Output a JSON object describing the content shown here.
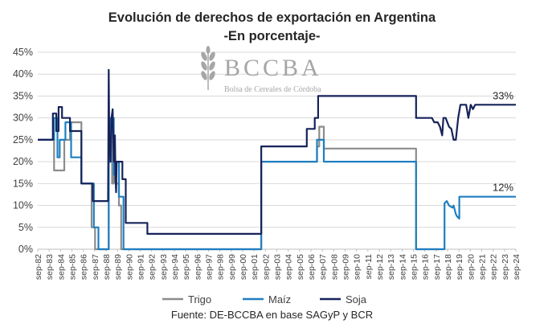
{
  "chart_data": {
    "type": "line",
    "title": "Evolución de derechos de exportación en Argentina",
    "subtitle": "-En porcentaje-",
    "xlabel": "",
    "ylabel": "",
    "ylim": [
      0,
      45
    ],
    "yticks": [
      "0%",
      "5%",
      "10%",
      "15%",
      "20%",
      "25%",
      "30%",
      "35%",
      "40%",
      "45%"
    ],
    "xlim": [
      1982.67,
      2024.67
    ],
    "xticks": [
      "sep-82",
      "sep-83",
      "sep-84",
      "sep-85",
      "sep-86",
      "sep-87",
      "sep-88",
      "sep-89",
      "sep-90",
      "sep-91",
      "sep-92",
      "sep-93",
      "sep-94",
      "sep-95",
      "sep-96",
      "sep-97",
      "sep-98",
      "sep-99",
      "sep-00",
      "sep-01",
      "sep-02",
      "sep-03",
      "sep-04",
      "sep-05",
      "sep-06",
      "sep-07",
      "sep-08",
      "sep-09",
      "sep-10",
      "sep-11",
      "sep-12",
      "sep-13",
      "sep-14",
      "sep-15",
      "sep-16",
      "sep-17",
      "sep-18",
      "sep-19",
      "sep-20",
      "sep-21",
      "sep-22",
      "sep-23",
      "sep-24"
    ],
    "grid": "horizontal",
    "legend_position": "bottom",
    "annotations": [
      {
        "text": "33%",
        "series": "Soja"
      },
      {
        "text": "12%",
        "series": "Maíz"
      }
    ],
    "source": "Fuente: DE-BCCBA en base SAGyP y BCR",
    "series": [
      {
        "name": "Trigo",
        "color": "#8c8c8c",
        "x": [
          1982.67,
          1984.1,
          1984.1,
          1985.0,
          1985.0,
          1985.5,
          1985.5,
          1986.5,
          1986.5,
          1987.4,
          1987.4,
          1987.7,
          1987.7,
          1988.9,
          1988.9,
          1989.0,
          1989.0,
          1989.2,
          1989.2,
          1989.35,
          1989.35,
          1989.5,
          1989.5,
          1989.8,
          1989.8,
          1990.0,
          1990.0,
          2002.3,
          2002.3,
          2007.2,
          2007.2,
          2007.4,
          2007.4,
          2007.8,
          2007.8,
          2015.9,
          2015.9,
          2017.95
        ],
        "y": [
          25,
          25,
          18,
          18,
          25,
          25,
          29,
          29,
          15,
          15,
          5,
          5,
          0,
          0,
          20,
          20,
          30,
          30,
          15,
          15,
          20,
          20,
          15,
          15,
          10,
          10,
          0,
          0,
          20,
          20,
          23.5,
          23.5,
          28,
          28,
          23,
          23,
          0,
          0
        ]
      },
      {
        "name": "Maíz",
        "color": "#1f7fc0",
        "x": [
          1982.67,
          1984.1,
          1984.1,
          1984.4,
          1984.4,
          1984.6,
          1984.6,
          1985.1,
          1985.1,
          1985.6,
          1985.6,
          1986.5,
          1986.5,
          1987.6,
          1987.6,
          1988.0,
          1988.0,
          1988.9,
          1988.9,
          1989.1,
          1989.1,
          1989.35,
          1989.35,
          1989.5,
          1989.5,
          1989.8,
          1989.8,
          1990.2,
          1990.2,
          2002.3,
          2002.3,
          2007.2,
          2007.2,
          2007.4,
          2007.4,
          2007.8,
          2007.8,
          2015.9,
          2015.9,
          2018.4,
          2018.4,
          2018.6,
          2018.8,
          2019.1,
          2019.2,
          2019.4,
          2019.5,
          2019.7,
          2019.7,
          2020.1,
          2020.1,
          2024.67
        ],
        "y": [
          25,
          25,
          30,
          30,
          21,
          21,
          25,
          25,
          29,
          29,
          21,
          21,
          15,
          15,
          5,
          5,
          0,
          0,
          20,
          20,
          30,
          30,
          17,
          17,
          20,
          20,
          12,
          12,
          0,
          0,
          20,
          20,
          25,
          25,
          25,
          25,
          20,
          20,
          0,
          0,
          10.5,
          11,
          10,
          9.5,
          10,
          8,
          7.5,
          7,
          12,
          12,
          12,
          12
        ]
      },
      {
        "name": "Soja",
        "color": "#16235a",
        "x": [
          1982.67,
          1984.0,
          1984.0,
          1984.3,
          1984.3,
          1984.5,
          1984.5,
          1984.8,
          1984.8,
          1985.5,
          1985.5,
          1985.7,
          1985.7,
          1986.5,
          1986.5,
          1987.5,
          1987.5,
          1988.0,
          1988.0,
          1988.85,
          1988.9,
          1988.95,
          1989.05,
          1989.1,
          1989.15,
          1989.25,
          1989.35,
          1989.45,
          1989.5,
          1989.55,
          1989.6,
          1990.1,
          1990.1,
          1990.4,
          1990.4,
          1992.3,
          1992.3,
          2002.3,
          2002.3,
          2006.3,
          2006.3,
          2007.0,
          2007.0,
          2007.3,
          2007.3,
          2015.9,
          2015.9,
          2017.3,
          2017.5,
          2017.8,
          2018.0,
          2018.2,
          2018.3,
          2018.5,
          2018.8,
          2019.0,
          2019.2,
          2019.4,
          2019.6,
          2019.8,
          2020.0,
          2020.3,
          2020.5,
          2020.7,
          2020.9,
          2021.1,
          2021.4,
          2024.67
        ],
        "y": [
          25,
          25,
          31,
          31,
          27,
          27,
          32.5,
          32.5,
          30,
          30,
          27,
          27,
          27,
          27,
          15,
          15,
          11,
          11,
          11,
          11,
          41,
          25,
          20,
          25,
          30,
          32,
          20,
          26,
          16,
          13,
          20,
          20,
          16,
          16,
          6,
          6,
          3.5,
          3.5,
          23.5,
          23.5,
          27.5,
          27.5,
          30,
          30,
          35,
          35,
          30,
          30,
          29,
          29,
          28,
          26,
          30,
          30,
          28,
          27.5,
          25,
          25,
          30,
          33,
          33,
          33,
          30,
          33,
          32,
          33,
          33,
          33
        ]
      }
    ]
  },
  "logo": {
    "name": "BCCBA",
    "subtitle": "Bolsa de Cereales de Córdoba",
    "icon": "wheat-icon",
    "color": "#a6a6a6"
  }
}
